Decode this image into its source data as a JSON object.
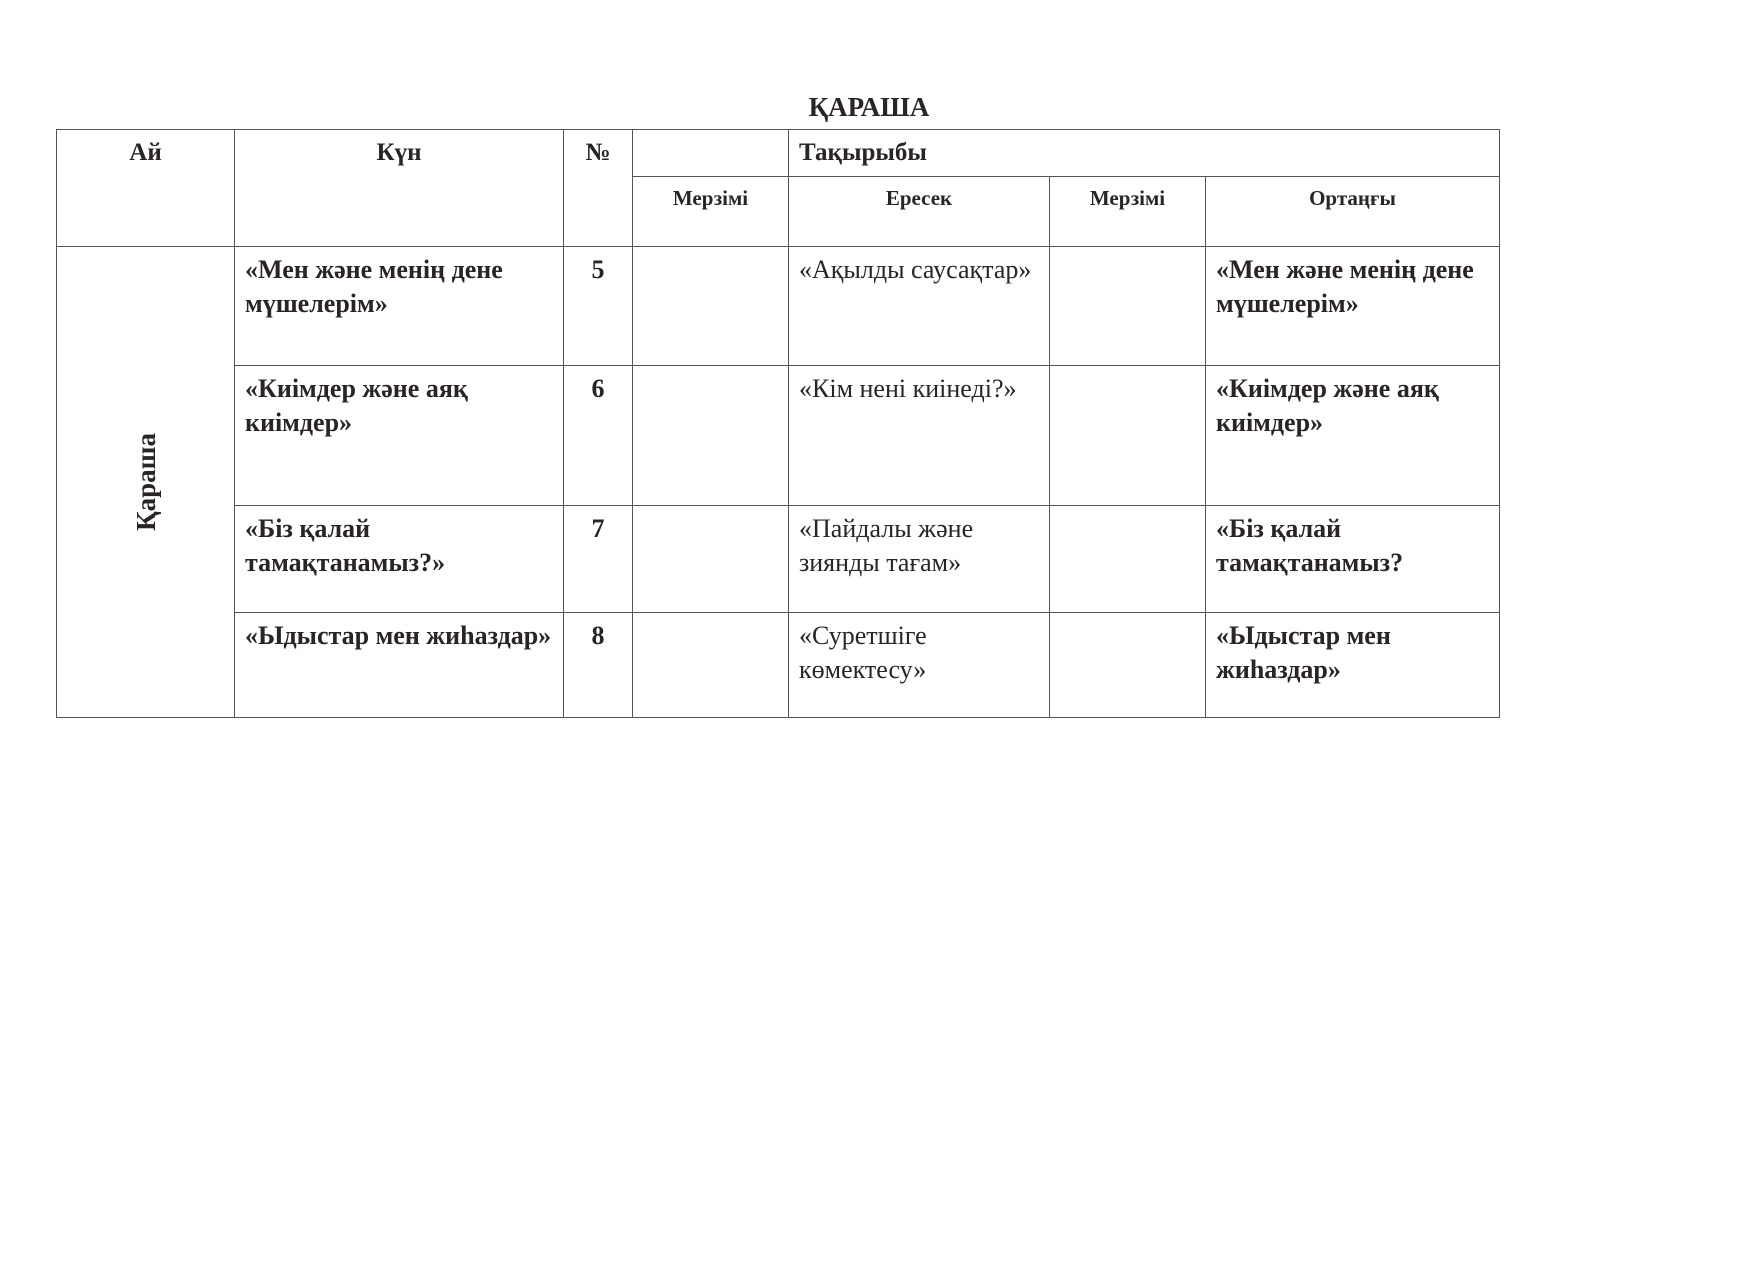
{
  "title": "ҚАРАША",
  "headers": {
    "month": "Ай",
    "day": "Күн",
    "number": "№",
    "topic": "Тақырыбы",
    "deadline1": "Мерзімі",
    "senior": "Ересек",
    "deadline2": "Мерзімі",
    "middle": "Ортаңғы"
  },
  "month_value": "Қараша",
  "rows": [
    {
      "day": "«Мен және менің дене мүшелерім»",
      "number": "5",
      "deadline1": "",
      "senior": "«Ақылды саусақтар»",
      "deadline2": "",
      "middle": "«Мен және менің дене мүшелерім»"
    },
    {
      "day": "«Киімдер және аяқ киімдер»",
      "number": "6",
      "deadline1": "",
      "senior": "«Кім нені киінеді?»",
      "deadline2": "",
      "middle": "«Киімдер және аяқ киімдер»"
    },
    {
      "day": "«Біз қалай тамақтанамыз?»",
      "number": "7",
      "deadline1": "",
      "senior": "«Пайдалы және зиянды тағам»",
      "deadline2": "",
      "middle": "«Біз қалай тамақтанамыз?"
    },
    {
      "day": "«Ыдыстар мен жиһаздар»",
      "number": "8",
      "deadline1": "",
      "senior": "«Суретшіге көмектесу»",
      "deadline2": "",
      "middle": "«Ыдыстар мен жиһаздар»"
    }
  ]
}
